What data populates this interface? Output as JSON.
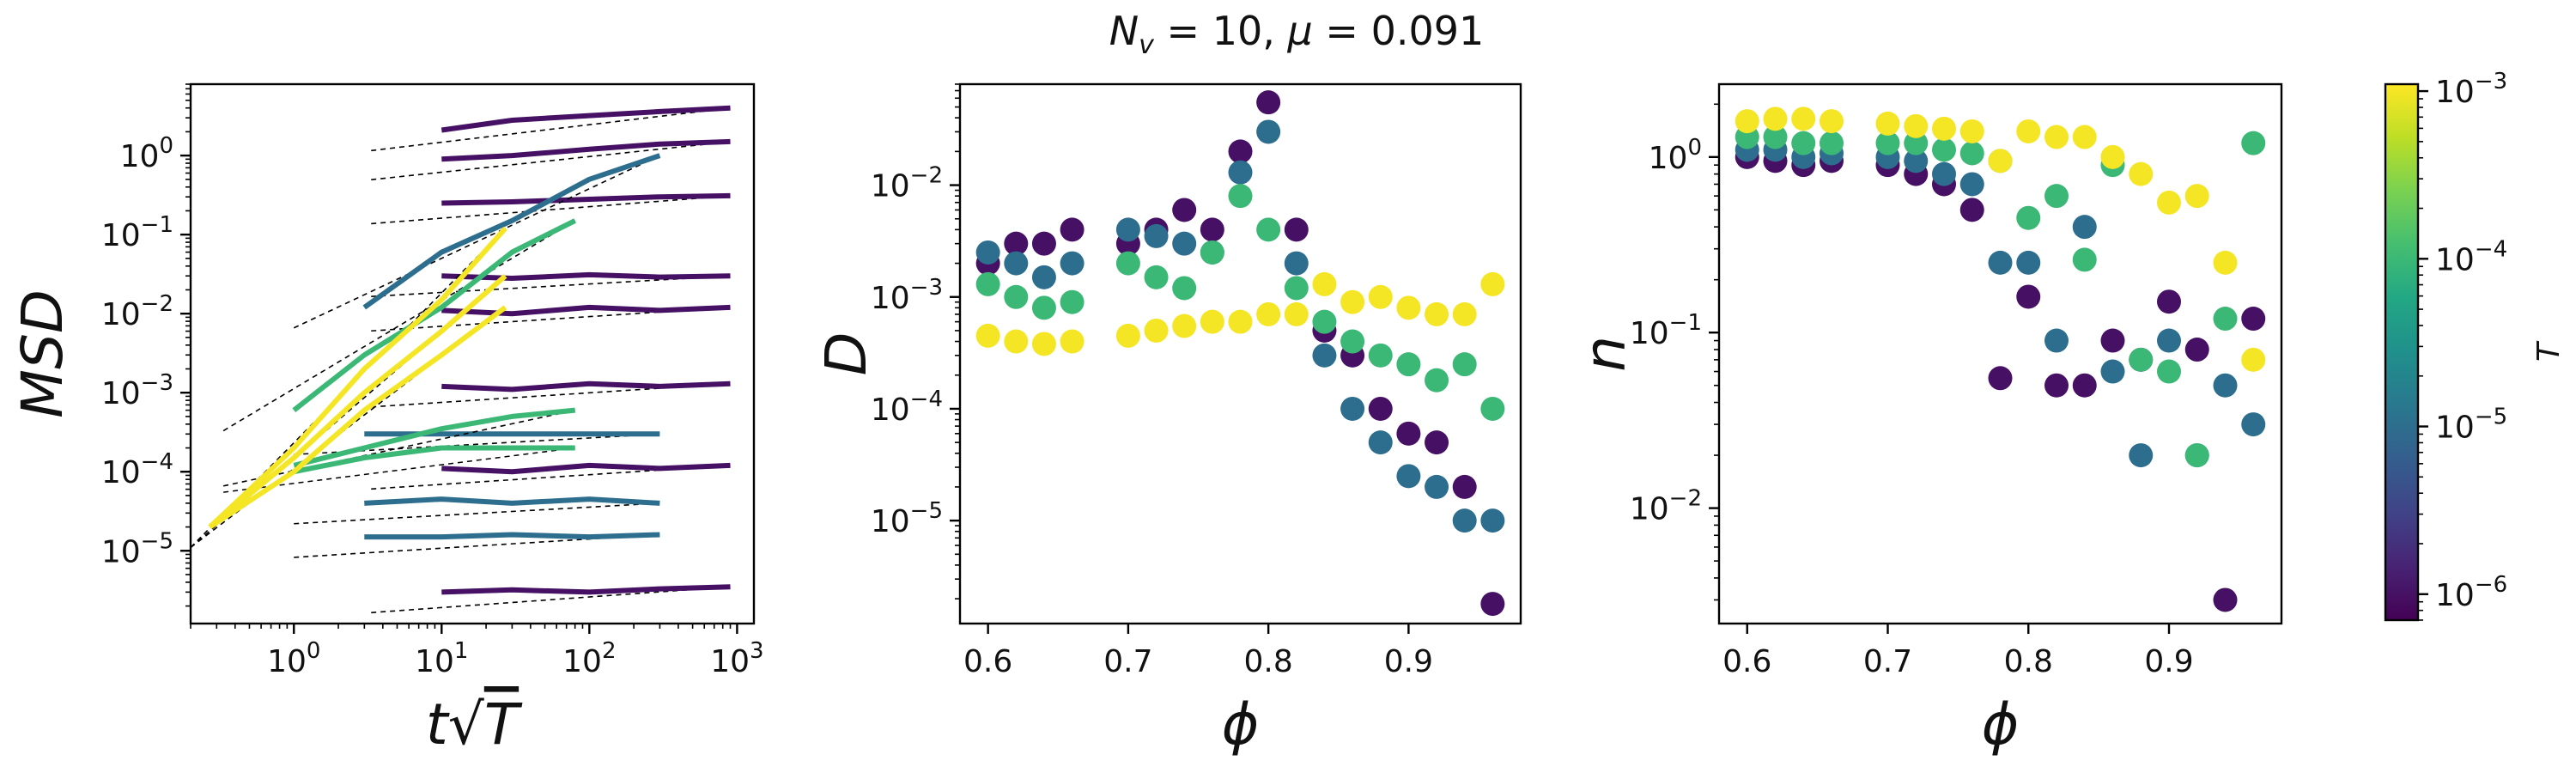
{
  "figure": {
    "suptitle_html": "N<tspan font-style='italic'>v</tspan>"
  },
  "chart_data": [
    {
      "id": "msd",
      "type": "line",
      "xlabel": "t√T",
      "ylabel": "MSD",
      "xscale": "log",
      "yscale": "log",
      "xlim": [
        0.2,
        1300
      ],
      "ylim": [
        1.2e-06,
        8
      ],
      "xticks": [
        {
          "v": 1,
          "label": "10^0"
        },
        {
          "v": 10,
          "label": "10^1"
        },
        {
          "v": 100,
          "label": "10^2"
        },
        {
          "v": 1000,
          "label": "10^3"
        }
      ],
      "yticks": [
        {
          "v": 1e-05,
          "label": "10^-5"
        },
        {
          "v": 0.0001,
          "label": "10^-4"
        },
        {
          "v": 0.001,
          "label": "10^-3"
        },
        {
          "v": 0.01,
          "label": "10^-2"
        },
        {
          "v": 0.1,
          "label": "10^-1"
        },
        {
          "v": 1,
          "label": "10^0"
        }
      ],
      "note": "curve families colored by temperature T; dashed black lines are fits",
      "series": [
        {
          "T": 1e-06,
          "x": [
            10,
            30,
            100,
            300,
            900
          ],
          "y": [
            2.1,
            2.8,
            3.2,
            3.6,
            4.0
          ]
        },
        {
          "T": 1e-06,
          "x": [
            10,
            30,
            100,
            300,
            900
          ],
          "y": [
            0.9,
            1.0,
            1.2,
            1.4,
            1.5
          ]
        },
        {
          "T": 1e-06,
          "x": [
            10,
            30,
            100,
            300,
            900
          ],
          "y": [
            0.25,
            0.26,
            0.28,
            0.3,
            0.31
          ]
        },
        {
          "T": 1e-06,
          "x": [
            10,
            30,
            100,
            300,
            900
          ],
          "y": [
            0.03,
            0.028,
            0.031,
            0.029,
            0.03
          ]
        },
        {
          "T": 1e-06,
          "x": [
            10,
            30,
            100,
            300,
            900
          ],
          "y": [
            0.011,
            0.01,
            0.012,
            0.011,
            0.012
          ]
        },
        {
          "T": 1e-06,
          "x": [
            10,
            30,
            100,
            300,
            900
          ],
          "y": [
            0.0012,
            0.0011,
            0.0013,
            0.0012,
            0.0013
          ]
        },
        {
          "T": 1e-06,
          "x": [
            10,
            30,
            100,
            300,
            900
          ],
          "y": [
            0.00011,
            0.0001,
            0.00012,
            0.00011,
            0.00012
          ]
        },
        {
          "T": 1e-06,
          "x": [
            10,
            30,
            100,
            300,
            900
          ],
          "y": [
            3e-06,
            3.2e-06,
            3e-06,
            3.3e-06,
            3.5e-06
          ]
        },
        {
          "T": 1e-05,
          "x": [
            3,
            10,
            30,
            100,
            300
          ],
          "y": [
            0.012,
            0.06,
            0.15,
            0.5,
            1.0
          ]
        },
        {
          "T": 1e-05,
          "x": [
            3,
            10,
            30,
            100,
            300
          ],
          "y": [
            0.0003,
            0.0003,
            0.0003,
            0.0003,
            0.0003
          ]
        },
        {
          "T": 1e-05,
          "x": [
            3,
            10,
            30,
            100,
            300
          ],
          "y": [
            4e-05,
            4.5e-05,
            4e-05,
            4.5e-05,
            4e-05
          ]
        },
        {
          "T": 1e-05,
          "x": [
            3,
            10,
            30,
            100,
            300
          ],
          "y": [
            1.5e-05,
            1.5e-05,
            1.6e-05,
            1.5e-05,
            1.6e-05
          ]
        },
        {
          "T": 0.0001,
          "x": [
            1,
            3,
            10,
            30,
            80
          ],
          "y": [
            0.0006,
            0.003,
            0.012,
            0.06,
            0.15
          ]
        },
        {
          "T": 0.0001,
          "x": [
            1,
            3,
            10,
            30,
            80
          ],
          "y": [
            0.00012,
            0.0002,
            0.00035,
            0.0005,
            0.0006
          ]
        },
        {
          "T": 0.0001,
          "x": [
            1,
            3,
            10,
            30,
            80
          ],
          "y": [
            0.0001,
            0.00015,
            0.0002,
            0.0002,
            0.0002
          ]
        },
        {
          "T": 0.001,
          "x": [
            0.27,
            1,
            3,
            10,
            27
          ],
          "y": [
            2e-05,
            0.0002,
            0.002,
            0.015,
            0.12
          ]
        },
        {
          "T": 0.001,
          "x": [
            0.27,
            1,
            3,
            10,
            27
          ],
          "y": [
            2e-05,
            0.00015,
            0.001,
            0.006,
            0.03
          ]
        },
        {
          "T": 0.001,
          "x": [
            0.27,
            1,
            3,
            10,
            27
          ],
          "y": [
            2e-05,
            0.0001,
            0.0006,
            0.003,
            0.012
          ]
        }
      ]
    },
    {
      "id": "diffusion",
      "type": "scatter",
      "xlabel": "ϕ",
      "ylabel": "D",
      "xscale": "linear",
      "yscale": "log",
      "xlim": [
        0.58,
        0.98
      ],
      "ylim": [
        1.2e-06,
        0.08
      ],
      "xticks": [
        {
          "v": 0.6,
          "label": "0.6"
        },
        {
          "v": 0.7,
          "label": "0.7"
        },
        {
          "v": 0.8,
          "label": "0.8"
        },
        {
          "v": 0.9,
          "label": "0.9"
        }
      ],
      "yticks": [
        {
          "v": 1e-05,
          "label": "10^-5"
        },
        {
          "v": 0.0001,
          "label": "10^-4"
        },
        {
          "v": 0.001,
          "label": "10^-3"
        },
        {
          "v": 0.01,
          "label": "10^-2"
        }
      ],
      "series": [
        {
          "T": 1e-06,
          "x": [
            0.6,
            0.62,
            0.64,
            0.66,
            0.7,
            0.72,
            0.74,
            0.76,
            0.78,
            0.8,
            0.82,
            0.84,
            0.86,
            0.88,
            0.9,
            0.92,
            0.94,
            0.96
          ],
          "y": [
            0.002,
            0.003,
            0.003,
            0.004,
            0.003,
            0.004,
            0.006,
            0.004,
            0.02,
            0.055,
            0.004,
            0.0005,
            0.0003,
            0.0001,
            6e-05,
            5e-05,
            2e-05,
            1.8e-06
          ]
        },
        {
          "T": 1e-05,
          "x": [
            0.6,
            0.62,
            0.64,
            0.66,
            0.7,
            0.72,
            0.74,
            0.76,
            0.78,
            0.8,
            0.82,
            0.84,
            0.86,
            0.88,
            0.9,
            0.92,
            0.94,
            0.96
          ],
          "y": [
            0.0025,
            0.002,
            0.0015,
            0.002,
            0.004,
            0.0035,
            0.003,
            0.0025,
            0.013,
            0.03,
            0.002,
            0.0003,
            0.0001,
            5e-05,
            2.5e-05,
            2e-05,
            1e-05,
            1e-05
          ]
        },
        {
          "T": 0.0001,
          "x": [
            0.6,
            0.62,
            0.64,
            0.66,
            0.7,
            0.72,
            0.74,
            0.76,
            0.78,
            0.8,
            0.82,
            0.84,
            0.86,
            0.88,
            0.9,
            0.92,
            0.94,
            0.96
          ],
          "y": [
            0.0013,
            0.001,
            0.0008,
            0.0009,
            0.002,
            0.0015,
            0.0012,
            0.0025,
            0.008,
            0.004,
            0.0012,
            0.0006,
            0.0004,
            0.0003,
            0.00025,
            0.00018,
            0.00025,
            0.0001
          ]
        },
        {
          "T": 0.001,
          "x": [
            0.6,
            0.62,
            0.64,
            0.66,
            0.7,
            0.72,
            0.74,
            0.76,
            0.78,
            0.8,
            0.82,
            0.84,
            0.86,
            0.88,
            0.9,
            0.92,
            0.94,
            0.96
          ],
          "y": [
            0.00045,
            0.0004,
            0.00038,
            0.0004,
            0.00045,
            0.0005,
            0.00055,
            0.0006,
            0.0006,
            0.0007,
            0.0007,
            0.0013,
            0.0009,
            0.001,
            0.0008,
            0.0007,
            0.0007,
            0.0013
          ]
        }
      ]
    },
    {
      "id": "exponent",
      "type": "scatter",
      "xlabel": "ϕ",
      "ylabel": "n",
      "xscale": "linear",
      "yscale": "log",
      "xlim": [
        0.58,
        0.98
      ],
      "ylim": [
        0.0022,
        2.6
      ],
      "xticks": [
        {
          "v": 0.6,
          "label": "0.6"
        },
        {
          "v": 0.7,
          "label": "0.7"
        },
        {
          "v": 0.8,
          "label": "0.8"
        },
        {
          "v": 0.9,
          "label": "0.9"
        }
      ],
      "yticks": [
        {
          "v": 0.01,
          "label": "10^-2"
        },
        {
          "v": 0.1,
          "label": "10^-1"
        },
        {
          "v": 1,
          "label": "10^0"
        }
      ],
      "series": [
        {
          "T": 1e-06,
          "x": [
            0.6,
            0.62,
            0.64,
            0.66,
            0.7,
            0.72,
            0.74,
            0.76,
            0.78,
            0.8,
            0.82,
            0.84,
            0.86,
            0.88,
            0.9,
            0.92,
            0.94,
            0.96
          ],
          "y": [
            1.0,
            0.95,
            0.9,
            0.95,
            0.9,
            0.8,
            0.7,
            0.5,
            0.055,
            0.16,
            0.05,
            0.05,
            0.09,
            0.07,
            0.15,
            0.08,
            0.003,
            0.12
          ]
        },
        {
          "T": 1e-05,
          "x": [
            0.6,
            0.62,
            0.64,
            0.66,
            0.7,
            0.72,
            0.74,
            0.76,
            0.78,
            0.8,
            0.82,
            0.84,
            0.86,
            0.88,
            0.9,
            0.92,
            0.94,
            0.96
          ],
          "y": [
            1.1,
            1.1,
            1.0,
            1.05,
            1.0,
            0.95,
            0.8,
            0.7,
            0.25,
            0.25,
            0.09,
            0.4,
            0.06,
            0.02,
            0.09,
            0.02,
            0.05,
            0.03
          ]
        },
        {
          "T": 0.0001,
          "x": [
            0.6,
            0.62,
            0.64,
            0.66,
            0.7,
            0.72,
            0.74,
            0.76,
            0.78,
            0.8,
            0.82,
            0.84,
            0.86,
            0.88,
            0.9,
            0.92,
            0.94,
            0.96
          ],
          "y": [
            1.3,
            1.3,
            1.2,
            1.2,
            1.2,
            1.2,
            1.1,
            1.05,
            0.95,
            0.45,
            0.6,
            0.26,
            0.9,
            0.07,
            0.06,
            0.02,
            0.12,
            1.2
          ]
        },
        {
          "T": 0.001,
          "x": [
            0.6,
            0.62,
            0.64,
            0.66,
            0.7,
            0.72,
            0.74,
            0.76,
            0.78,
            0.8,
            0.82,
            0.84,
            0.86,
            0.88,
            0.9,
            0.92,
            0.94,
            0.96
          ],
          "y": [
            1.6,
            1.65,
            1.65,
            1.6,
            1.55,
            1.5,
            1.45,
            1.4,
            0.95,
            1.4,
            1.3,
            1.3,
            1.0,
            0.8,
            0.55,
            0.6,
            0.25,
            0.07
          ]
        }
      ]
    }
  ],
  "colorbar": {
    "label": "T",
    "scale": "log",
    "range": [
      7e-07,
      0.0011
    ],
    "ticks": [
      {
        "v": 1e-06,
        "label": "10^-6"
      },
      {
        "v": 1e-05,
        "label": "10^-5"
      },
      {
        "v": 0.0001,
        "label": "10^-4"
      },
      {
        "v": 0.001,
        "label": "10^-3"
      }
    ],
    "colormap": "viridis"
  }
}
